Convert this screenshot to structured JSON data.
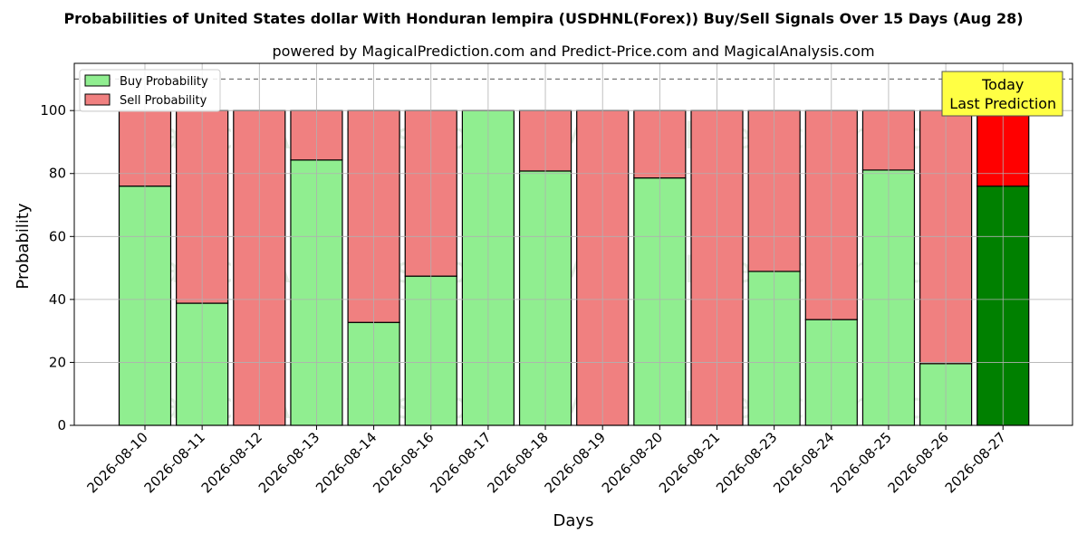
{
  "chart_data": {
    "type": "bar",
    "stacked": true,
    "title": "Probabilities of United States dollar With Honduran lempira (USDHNL(Forex)) Buy/Sell Signals Over 15 Days (Aug 28)",
    "subtitle": "powered by MagicalPrediction.com and Predict-Price.com and MagicalAnalysis.com",
    "xlabel": "Days",
    "ylabel": "Probability",
    "ylim": [
      0,
      115
    ],
    "yticks": [
      0,
      20,
      40,
      60,
      80,
      100
    ],
    "reference_line": 110,
    "grid": true,
    "legend_position": "top-left",
    "categories": [
      "2026-08-10",
      "2026-08-11",
      "2026-08-12",
      "2026-08-13",
      "2026-08-14",
      "2026-08-16",
      "2026-08-17",
      "2026-08-18",
      "2026-08-19",
      "2026-08-20",
      "2026-08-21",
      "2026-08-23",
      "2026-08-24",
      "2026-08-25",
      "2026-08-26",
      "2026-08-27"
    ],
    "series": [
      {
        "name": "Buy Probability",
        "color": "#90ee90",
        "today_color": "#008000",
        "values": [
          76,
          38.8,
          0,
          84.3,
          32.7,
          47.4,
          100,
          80.8,
          0,
          78.6,
          0,
          48.9,
          33.6,
          81.1,
          19.6,
          76
        ]
      },
      {
        "name": "Sell Probability",
        "color": "#f08080",
        "today_color": "#ff0000",
        "values": [
          24,
          61.2,
          100,
          15.7,
          67.3,
          52.6,
          0,
          19.2,
          100,
          21.4,
          100,
          51.1,
          66.4,
          18.9,
          80.4,
          24
        ]
      }
    ],
    "annotation": {
      "line1": "Today",
      "line2": "Last Prediction",
      "color": "#ffff44"
    },
    "watermarks": [
      "MagicalAnalysis.com",
      "MagicalPrediction.com"
    ]
  }
}
